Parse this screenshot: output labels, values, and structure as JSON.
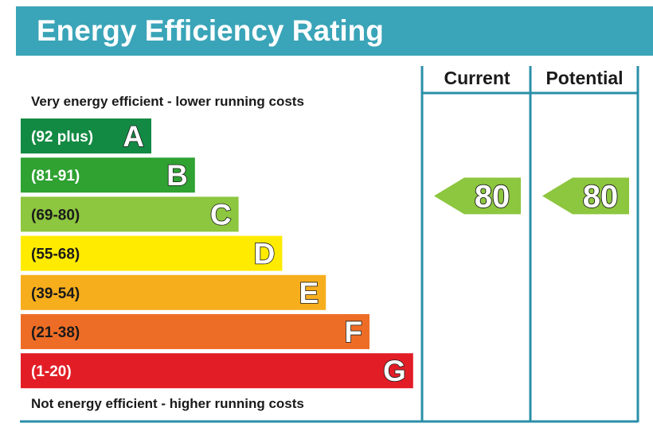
{
  "title": "Energy Efficiency Rating",
  "caption_top": "Very energy efficient - lower running costs",
  "caption_bottom": "Not energy efficient - higher running costs",
  "columns": {
    "current": "Current",
    "potential": "Potential"
  },
  "colors": {
    "header": "#3aa4b8",
    "frame": "#2a8fa8",
    "arrow": "#8dc63f"
  },
  "chart_data": {
    "type": "bar",
    "categories": [
      "A",
      "B",
      "C",
      "D",
      "E",
      "F",
      "G"
    ],
    "bands": [
      {
        "letter": "A",
        "range": "(92 plus)",
        "color": "#138a43",
        "text_color": "#ffffff"
      },
      {
        "letter": "B",
        "range": "(81-91)",
        "color": "#2fa232",
        "text_color": "#ffffff"
      },
      {
        "letter": "C",
        "range": "(69-80)",
        "color": "#8dc63f",
        "text_color": "#1a1a1a"
      },
      {
        "letter": "D",
        "range": "(55-68)",
        "color": "#ffeb00",
        "text_color": "#1a1a1a"
      },
      {
        "letter": "E",
        "range": "(39-54)",
        "color": "#f7ae1d",
        "text_color": "#1a1a1a"
      },
      {
        "letter": "F",
        "range": "(21-38)",
        "color": "#ee6d26",
        "text_color": "#1a1a1a"
      },
      {
        "letter": "G",
        "range": "(1-20)",
        "color": "#e21d26",
        "text_color": "#ffffff"
      }
    ],
    "current": 80,
    "potential": 80
  }
}
